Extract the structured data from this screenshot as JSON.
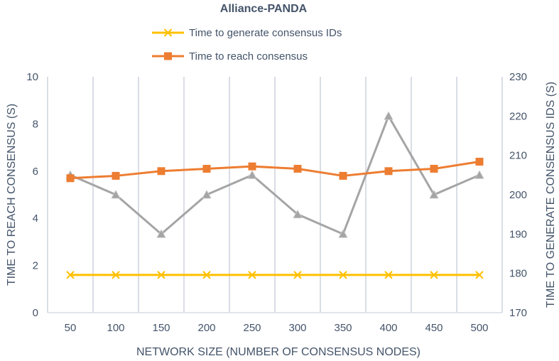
{
  "chart_data": {
    "type": "line",
    "title": "Alliance-PANDA",
    "categories": [
      "50",
      "100",
      "150",
      "200",
      "250",
      "300",
      "350",
      "400",
      "450",
      "500"
    ],
    "xlabel": "NETWORK SIZE (NUMBER OF CONSENSUS NODES)",
    "ylabel_left": "TIME TO REACH CONSENSUS (S)",
    "ylabel_right": "TIME TO GENERATE CONSENSUS IDS (S)",
    "ylim_left": [
      0,
      10
    ],
    "yticks_left": [
      "0",
      "2",
      "4",
      "6",
      "8",
      "10"
    ],
    "ylim_right": [
      170,
      230
    ],
    "yticks_right": [
      "170",
      "180",
      "190",
      "200",
      "210",
      "220",
      "230"
    ],
    "grid": "vertical",
    "legend_position": "top",
    "series": [
      {
        "name": "Time to generate consensus IDs",
        "axis": "left",
        "marker": "x",
        "color": "#ffc000",
        "values": [
          1.6,
          1.6,
          1.6,
          1.6,
          1.6,
          1.6,
          1.6,
          1.6,
          1.6,
          1.6
        ]
      },
      {
        "name": "Time to reach consensus",
        "axis": "left",
        "marker": "square",
        "color": "#ed7d31",
        "values": [
          5.7,
          5.8,
          6.0,
          6.1,
          6.2,
          6.1,
          5.8,
          6.0,
          6.1,
          6.4
        ]
      },
      {
        "axis": "right",
        "marker": "triangle",
        "color": "#a5a5a5",
        "values": [
          205,
          200,
          190,
          200,
          205,
          195,
          190,
          220,
          200,
          205
        ]
      }
    ]
  }
}
